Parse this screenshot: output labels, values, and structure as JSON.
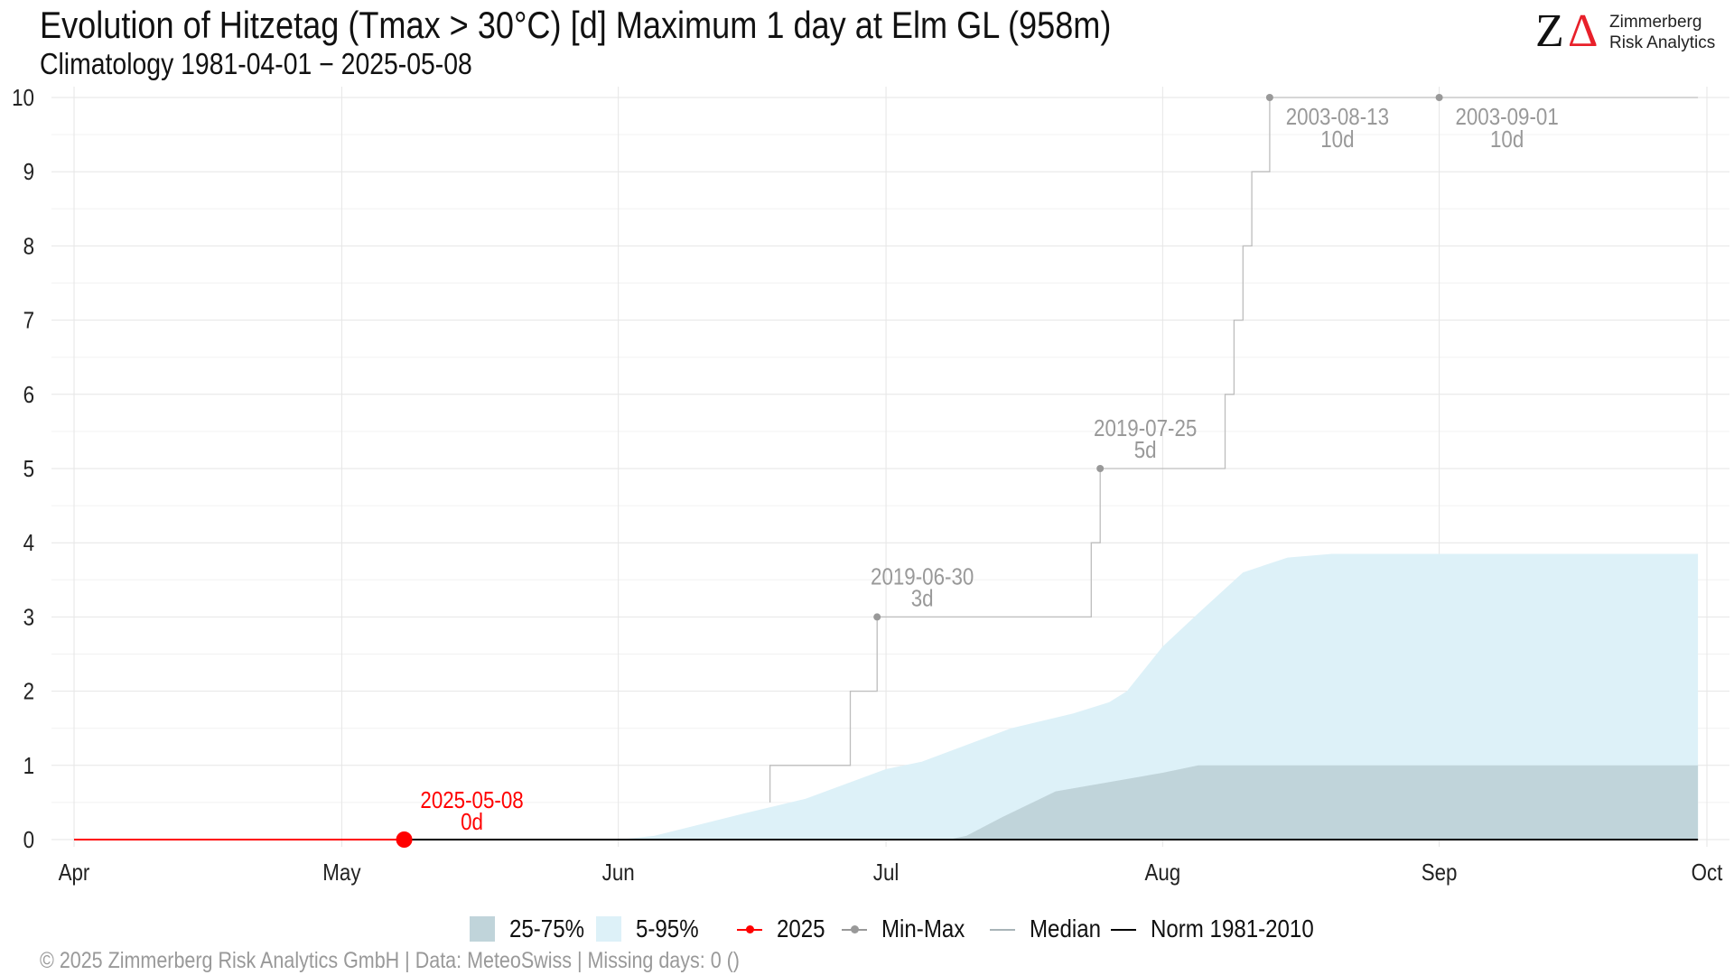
{
  "header": {
    "title": "Evolution of Hitzetag (Tmax > 30°C) [d] Maximum 1 day at Elm  GL (958m)",
    "subtitle": "Climatology 1981-04-01 − 2025-05-08"
  },
  "logo": {
    "mark": "Z",
    "delta": "Δ",
    "line1": "Zimmerberg",
    "line2": "Risk Analytics"
  },
  "footer": {
    "text": "©  2025 Zimmerberg Risk Analytics GmbH | Data: MeteoSwiss | Missing days: 0 ()"
  },
  "legend": {
    "band_iqr": "25-75%",
    "band_90": "5-95%",
    "current": "2025",
    "minmax": "Min-Max",
    "median": "Median",
    "norm": "Norm 1981-2010"
  },
  "colors": {
    "band_iqr": "#c0d4da",
    "band_90": "#ddf1f8",
    "current": "#ff0000",
    "minmax": "#999999",
    "median": "#a8b4b8",
    "norm": "#000000",
    "annotation": "#999999",
    "grid": "#e6e6e6"
  },
  "chart_data": {
    "type": "area",
    "title": "Evolution of Hitzetag (Tmax > 30°C) [d] Maximum 1 day at Elm  GL (958m)",
    "subtitle": "Climatology 1981-04-01 − 2025-05-08",
    "xlabel": "",
    "ylabel": "",
    "xlim": [
      "2025-04-01",
      "2025-10-01"
    ],
    "ylim": [
      0,
      10
    ],
    "grid": true,
    "legend_position": "bottom",
    "x_ticks": [
      {
        "date": "2025-04-01",
        "label": "Apr"
      },
      {
        "date": "2025-05-01",
        "label": "May"
      },
      {
        "date": "2025-06-01",
        "label": "Jun"
      },
      {
        "date": "2025-07-01",
        "label": "Jul"
      },
      {
        "date": "2025-08-01",
        "label": "Aug"
      },
      {
        "date": "2025-09-01",
        "label": "Sep"
      },
      {
        "date": "2025-10-01",
        "label": "Oct"
      }
    ],
    "y_ticks": [
      0,
      1,
      2,
      3,
      4,
      5,
      6,
      7,
      8,
      9,
      10
    ],
    "band_5_95": {
      "x": [
        "2025-06-01",
        "2025-06-05",
        "2025-06-15",
        "2025-06-22",
        "2025-07-01",
        "2025-07-05",
        "2025-07-15",
        "2025-07-22",
        "2025-07-26",
        "2025-07-28",
        "2025-08-01",
        "2025-08-05",
        "2025-08-10",
        "2025-08-15",
        "2025-08-20",
        "2025-09-01",
        "2025-09-30"
      ],
      "low": [
        0,
        0,
        0,
        0,
        0,
        0,
        0,
        0,
        0,
        0,
        0,
        0,
        0,
        0,
        0,
        0,
        0
      ],
      "high": [
        0,
        0.05,
        0.35,
        0.55,
        0.95,
        1.05,
        1.5,
        1.7,
        1.85,
        2.0,
        2.6,
        3.05,
        3.6,
        3.8,
        3.85,
        3.85,
        3.85
      ]
    },
    "band_25_75": {
      "x": [
        "2025-07-08",
        "2025-07-10",
        "2025-07-14",
        "2025-07-20",
        "2025-08-01",
        "2025-08-05",
        "2025-09-01",
        "2025-09-30"
      ],
      "low": [
        0,
        0,
        0,
        0,
        0,
        0,
        0,
        0
      ],
      "high": [
        0,
        0.05,
        0.3,
        0.65,
        0.9,
        1.0,
        1.0,
        1.0
      ]
    },
    "series": [
      {
        "name": "Min-Max",
        "step": true,
        "x": [
          "2025-06-18",
          "2025-06-18",
          "2025-06-27",
          "2025-06-30",
          "2025-07-24",
          "2025-07-25",
          "2025-08-08",
          "2025-08-09",
          "2025-08-10",
          "2025-08-11",
          "2025-08-12",
          "2025-08-13",
          "2025-09-30"
        ],
        "values": [
          0.5,
          1,
          2,
          3,
          4,
          5,
          6,
          7,
          8,
          9,
          9,
          10,
          10
        ]
      },
      {
        "name": "Median",
        "x": [
          "2025-04-01",
          "2025-09-30"
        ],
        "values": [
          0,
          0
        ]
      },
      {
        "name": "Norm 1981-2010",
        "x": [
          "2025-04-01",
          "2025-09-30"
        ],
        "values": [
          0,
          0
        ]
      },
      {
        "name": "2025",
        "x": [
          "2025-04-01",
          "2025-05-08"
        ],
        "values": [
          0,
          0
        ]
      }
    ],
    "annotations": [
      {
        "date": "2025-06-30",
        "value": 3,
        "label": "2019-06-30",
        "sublabel": "3d",
        "kind": "minmax"
      },
      {
        "date": "2025-07-25",
        "value": 5,
        "label": "2019-07-25",
        "sublabel": "5d",
        "kind": "minmax"
      },
      {
        "date": "2025-08-13",
        "value": 10,
        "label": "2003-08-13",
        "sublabel": "10d",
        "kind": "minmax"
      },
      {
        "date": "2025-09-01",
        "value": 10,
        "label": "2003-09-01",
        "sublabel": "10d",
        "kind": "minmax"
      },
      {
        "date": "2025-05-08",
        "value": 0,
        "label": "2025-05-08",
        "sublabel": "0d",
        "kind": "current"
      }
    ]
  }
}
